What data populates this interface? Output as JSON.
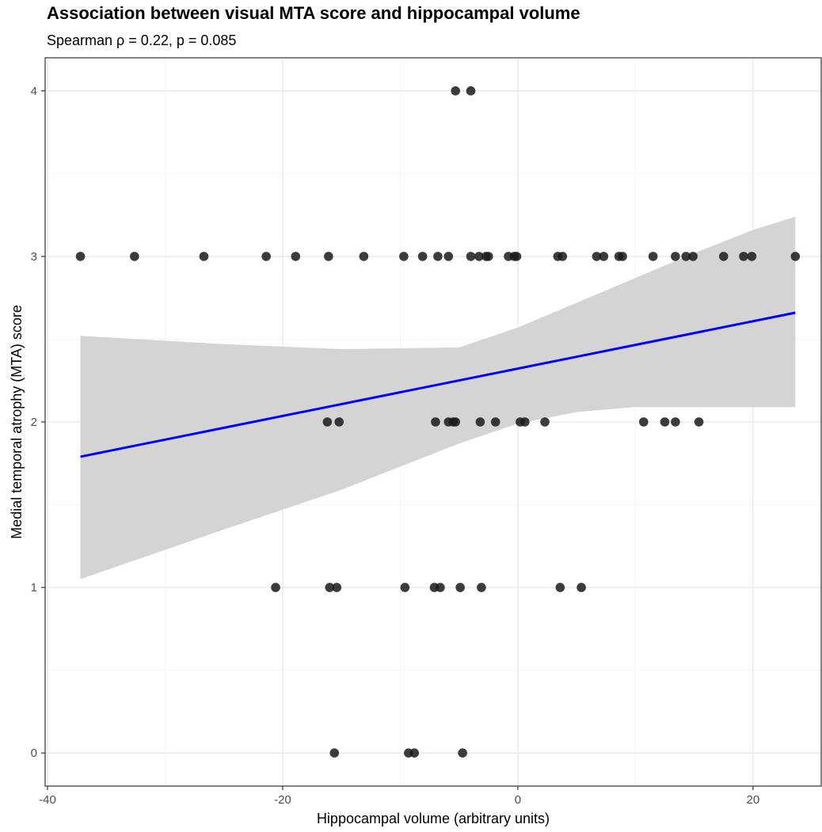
{
  "chart_data": {
    "type": "scatter",
    "title": "Association between visual MTA score and hippocampal volume",
    "subtitle": "Spearman ρ = 0.22, p = 0.085",
    "xlabel": "Hippocampal volume (arbitrary units)",
    "ylabel": "Medial temporal atrophy (MTA) score",
    "xlim": [
      -40.2,
      25.8
    ],
    "ylim": [
      -0.2,
      4.2
    ],
    "x_ticks": [
      -40,
      -20,
      0,
      20
    ],
    "x_tick_labels": [
      "-40",
      "-20",
      "0",
      "20"
    ],
    "y_ticks": [
      0,
      1,
      2,
      3,
      4
    ],
    "y_tick_labels": [
      "0",
      "1",
      "2",
      "3",
      "4"
    ],
    "grid": true,
    "colors": {
      "points": "#1a1a1a",
      "fit_line": "#0000ff",
      "ribbon": "#d4d4d4",
      "grid": "#ebebeb",
      "border": "#333333"
    },
    "points": [
      {
        "x": -5.3,
        "y": 4
      },
      {
        "x": -4.0,
        "y": 4
      },
      {
        "x": -37.2,
        "y": 3
      },
      {
        "x": -32.6,
        "y": 3
      },
      {
        "x": -26.7,
        "y": 3
      },
      {
        "x": -21.4,
        "y": 3
      },
      {
        "x": -18.9,
        "y": 3
      },
      {
        "x": -16.1,
        "y": 3
      },
      {
        "x": -13.1,
        "y": 3
      },
      {
        "x": -9.7,
        "y": 3
      },
      {
        "x": -8.1,
        "y": 3
      },
      {
        "x": -6.8,
        "y": 3
      },
      {
        "x": -5.9,
        "y": 3
      },
      {
        "x": -4.0,
        "y": 3
      },
      {
        "x": -3.3,
        "y": 3
      },
      {
        "x": -2.7,
        "y": 3
      },
      {
        "x": -2.5,
        "y": 3
      },
      {
        "x": -0.8,
        "y": 3
      },
      {
        "x": -0.3,
        "y": 3
      },
      {
        "x": -0.1,
        "y": 3
      },
      {
        "x": 3.4,
        "y": 3
      },
      {
        "x": 3.8,
        "y": 3
      },
      {
        "x": 6.7,
        "y": 3
      },
      {
        "x": 7.3,
        "y": 3
      },
      {
        "x": 8.6,
        "y": 3
      },
      {
        "x": 8.9,
        "y": 3
      },
      {
        "x": 11.5,
        "y": 3
      },
      {
        "x": 13.4,
        "y": 3
      },
      {
        "x": 14.3,
        "y": 3
      },
      {
        "x": 14.9,
        "y": 3
      },
      {
        "x": 17.5,
        "y": 3
      },
      {
        "x": 19.2,
        "y": 3
      },
      {
        "x": 19.9,
        "y": 3
      },
      {
        "x": 23.6,
        "y": 3
      },
      {
        "x": -16.2,
        "y": 2
      },
      {
        "x": -15.2,
        "y": 2
      },
      {
        "x": -7.0,
        "y": 2
      },
      {
        "x": -5.9,
        "y": 2
      },
      {
        "x": -5.5,
        "y": 2
      },
      {
        "x": -5.3,
        "y": 2
      },
      {
        "x": -3.2,
        "y": 2
      },
      {
        "x": -1.9,
        "y": 2
      },
      {
        "x": 0.2,
        "y": 2
      },
      {
        "x": 0.6,
        "y": 2
      },
      {
        "x": 2.3,
        "y": 2
      },
      {
        "x": 10.7,
        "y": 2
      },
      {
        "x": 12.5,
        "y": 2
      },
      {
        "x": 13.4,
        "y": 2
      },
      {
        "x": 15.4,
        "y": 2
      },
      {
        "x": -20.6,
        "y": 1
      },
      {
        "x": -16.0,
        "y": 1
      },
      {
        "x": -15.4,
        "y": 1
      },
      {
        "x": -9.6,
        "y": 1
      },
      {
        "x": -7.1,
        "y": 1
      },
      {
        "x": -6.6,
        "y": 1
      },
      {
        "x": -4.9,
        "y": 1
      },
      {
        "x": -3.1,
        "y": 1
      },
      {
        "x": 3.6,
        "y": 1
      },
      {
        "x": 5.4,
        "y": 1
      },
      {
        "x": -15.6,
        "y": 0
      },
      {
        "x": -9.3,
        "y": 0
      },
      {
        "x": -8.8,
        "y": 0
      },
      {
        "x": -4.7,
        "y": 0
      }
    ],
    "fit_line": {
      "x": [
        -37.2,
        23.6
      ],
      "y": [
        1.79,
        2.66
      ]
    },
    "confidence_band": {
      "x": [
        -37.2,
        -25,
        -15,
        -5,
        0,
        5,
        10,
        15,
        20,
        23.6
      ],
      "lower": [
        1.05,
        1.35,
        1.59,
        1.87,
        1.99,
        2.06,
        2.09,
        2.09,
        2.09,
        2.09
      ],
      "upper": [
        2.52,
        2.47,
        2.44,
        2.45,
        2.57,
        2.72,
        2.87,
        3.02,
        3.16,
        3.24
      ]
    }
  }
}
